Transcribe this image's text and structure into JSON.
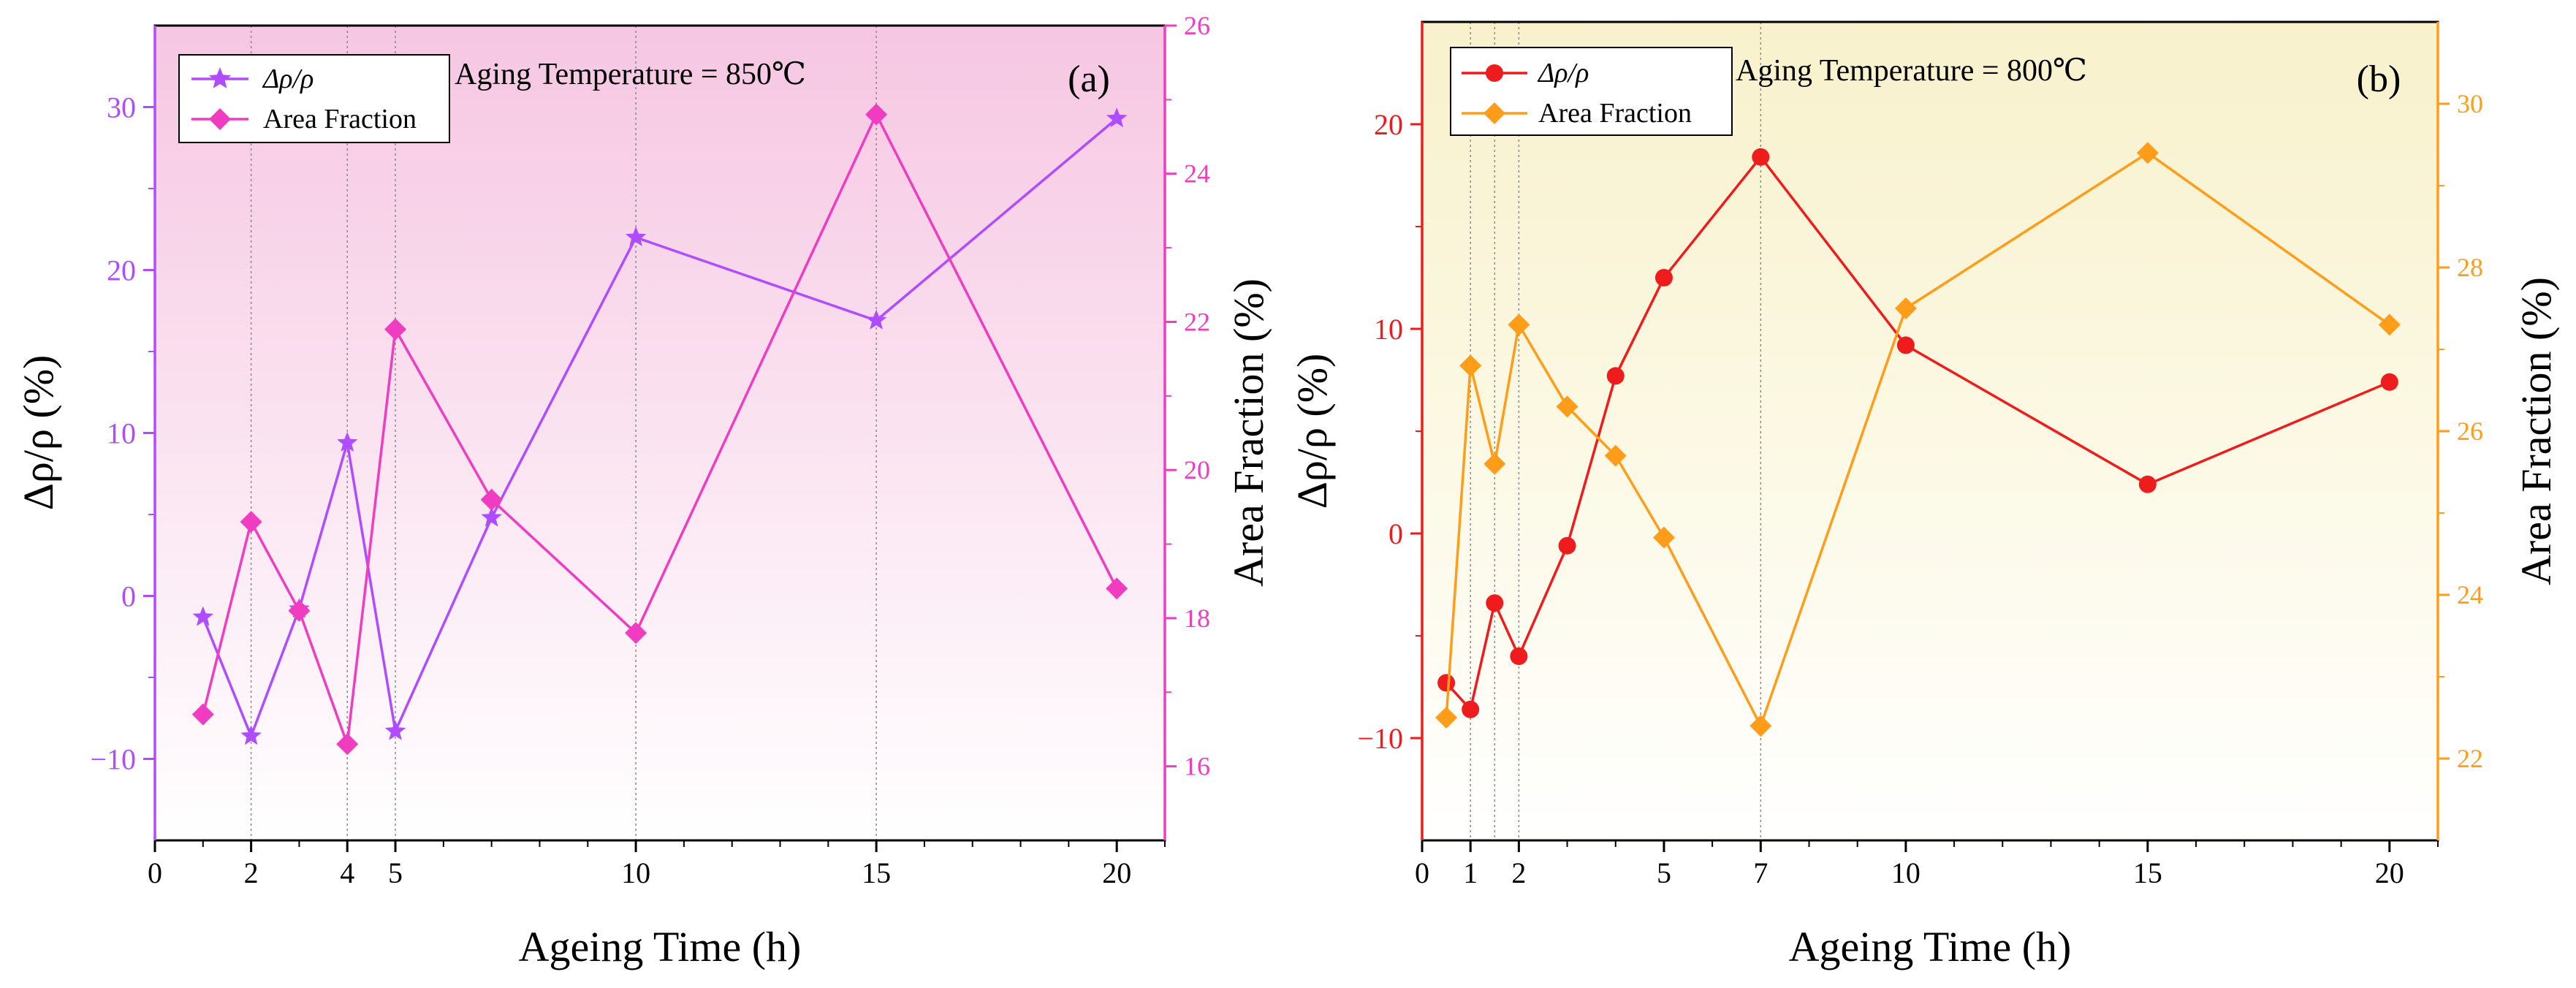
{
  "chart_data": [
    {
      "type": "line",
      "panel_label": "(a)",
      "annotation": "Aging Temperature = 850℃",
      "xlabel": "Ageing Time (h)",
      "ylabel_left": "Δρ/ρ (%)",
      "ylabel_right": "Area Fraction (%)",
      "xlim": [
        0,
        21
      ],
      "ylim_left": [
        -15,
        35
      ],
      "ylim_right": [
        15,
        26
      ],
      "x_ticks": [
        0,
        2,
        4,
        5,
        10,
        15,
        20
      ],
      "x_tick_labels": [
        "0",
        "2",
        "4",
        "5",
        "10",
        "15",
        "20"
      ],
      "y_left_ticks": [
        -10,
        0,
        10,
        20,
        30
      ],
      "y_left_tick_labels": [
        "−10",
        "0",
        "10",
        "20",
        "30"
      ],
      "y_right_ticks": [
        16,
        18,
        20,
        22,
        24,
        26
      ],
      "y_right_tick_labels": [
        "16",
        "18",
        "20",
        "22",
        "24",
        "26"
      ],
      "vertical_gridlines_at": [
        2,
        4,
        5,
        10,
        15
      ],
      "background": "pink gradient",
      "series": [
        {
          "name": "Δρ/ρ",
          "axis": "left",
          "marker": "star",
          "color": "#b04cff",
          "x": [
            1,
            2,
            3,
            4,
            5,
            7,
            10,
            15,
            20
          ],
          "values": [
            -1.3,
            -8.6,
            -0.8,
            9.4,
            -8.3,
            4.8,
            22.0,
            16.9,
            29.3
          ]
        },
        {
          "name": "Area Fraction",
          "axis": "right",
          "marker": "diamond",
          "color": "#f03cc0",
          "x": [
            1,
            2,
            3,
            4,
            5,
            7,
            10,
            15,
            20
          ],
          "values": [
            16.7,
            19.3,
            18.1,
            16.3,
            21.9,
            19.6,
            17.8,
            24.8,
            18.4
          ]
        }
      ]
    },
    {
      "type": "line",
      "panel_label": "(b)",
      "annotation": "Aging Temperature = 800℃",
      "xlabel": "Ageing Time (h)",
      "ylabel_left": "Δρ/ρ (%)",
      "ylabel_right": "Area Fraction (%)",
      "xlim": [
        0,
        21
      ],
      "ylim_left": [
        -15,
        25
      ],
      "ylim_right": [
        21,
        31
      ],
      "x_ticks": [
        0,
        1,
        2,
        5,
        7,
        10,
        15,
        20
      ],
      "x_tick_labels": [
        "0",
        "1",
        "2",
        "5",
        "7",
        "10",
        "15",
        "20"
      ],
      "y_left_ticks": [
        -10,
        0,
        10,
        20
      ],
      "y_left_tick_labels": [
        "−10",
        "0",
        "10",
        "20"
      ],
      "y_right_ticks": [
        22,
        24,
        26,
        28,
        30
      ],
      "y_right_tick_labels": [
        "22",
        "24",
        "26",
        "28",
        "30"
      ],
      "vertical_gridlines_at": [
        1,
        1.5,
        2,
        7
      ],
      "background": "light yellow gradient",
      "series": [
        {
          "name": "Δρ/ρ",
          "axis": "left",
          "marker": "circle",
          "color": "#ee1c1c",
          "x": [
            0.5,
            1,
            1.5,
            2,
            3,
            4,
            5,
            7,
            10,
            15,
            20
          ],
          "values": [
            -7.3,
            -8.6,
            -3.4,
            -6.0,
            -0.6,
            7.7,
            12.5,
            18.4,
            9.2,
            2.4,
            7.4
          ]
        },
        {
          "name": "Area Fraction",
          "axis": "right",
          "marker": "diamond",
          "color": "#ff9d1b",
          "x": [
            0.5,
            1,
            1.5,
            2,
            3,
            4,
            5,
            7,
            10,
            15,
            20
          ],
          "values": [
            22.5,
            26.8,
            25.6,
            27.3,
            26.3,
            25.7,
            24.7,
            22.4,
            27.5,
            29.4,
            27.3
          ]
        }
      ]
    }
  ]
}
